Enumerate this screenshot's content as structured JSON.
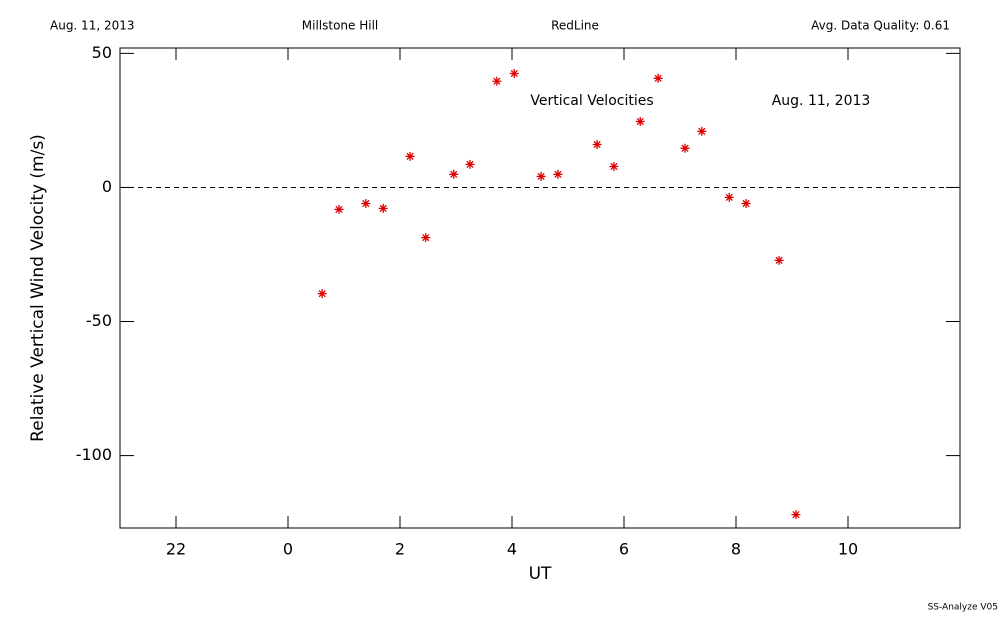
{
  "chart_data": {
    "type": "scatter",
    "header": [
      "Aug. 11, 2013",
      "Millstone Hill",
      "RedLine",
      "Avg. Data Quality: 0.61"
    ],
    "annotations": [
      "Vertical Velocities",
      "Aug. 11, 2013"
    ],
    "footer": "SS-Analyze V05",
    "x_label": "UT",
    "y_label": "Relative Vertical Wind Velocity (m/s)",
    "xlim": [
      -3,
      12
    ],
    "xticks": [
      {
        "value": -2,
        "label": "22"
      },
      0,
      2,
      4,
      6,
      8,
      10
    ],
    "ylim": [
      -127,
      52
    ],
    "yticks": [
      50,
      0,
      -50,
      -100
    ],
    "reference_line": 0,
    "color": "#e00000",
    "x": [
      0.61,
      0.91,
      1.39,
      1.7,
      2.18,
      2.46,
      2.96,
      3.25,
      3.73,
      4.04,
      4.52,
      4.82,
      5.52,
      5.82,
      6.29,
      6.61,
      7.09,
      7.39,
      7.88,
      8.18,
      8.77,
      9.07
    ],
    "values": [
      -39.6,
      -8.2,
      -6.0,
      -7.8,
      11.6,
      -18.7,
      4.9,
      8.6,
      39.6,
      42.5,
      4.1,
      4.9,
      16.0,
      7.8,
      24.6,
      40.7,
      14.6,
      20.9,
      -3.7,
      -6.0,
      -27.2,
      -122.0
    ]
  }
}
